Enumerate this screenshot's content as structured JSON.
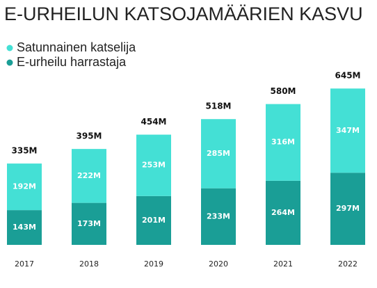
{
  "chart_data": {
    "type": "stacked-bar",
    "title": "E-URHEILUN KATSOJAMÄÄRIEN KASVU",
    "categories": [
      "2017",
      "2018",
      "2019",
      "2020",
      "2021",
      "2022"
    ],
    "series": [
      {
        "name": "E-urheilu harrastaja",
        "color": "#1a9e96",
        "values": [
          143,
          173,
          201,
          233,
          264,
          297
        ],
        "value_labels": [
          "143M",
          "173M",
          "201M",
          "233M",
          "264M",
          "297M"
        ]
      },
      {
        "name": "Satunnainen katselija",
        "color": "#44e0d5",
        "values": [
          192,
          222,
          253,
          285,
          316,
          347
        ],
        "value_labels": [
          "192M",
          "222M",
          "253M",
          "285M",
          "316M",
          "347M"
        ]
      }
    ],
    "totals": {
      "values": [
        335,
        395,
        454,
        518,
        580,
        645
      ],
      "value_labels": [
        "335M",
        "395M",
        "454M",
        "518M",
        "580M",
        "645M"
      ]
    }
  }
}
